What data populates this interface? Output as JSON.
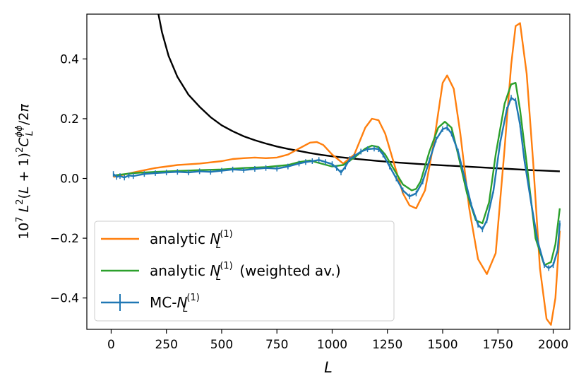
{
  "chart_data": {
    "type": "line",
    "title": "",
    "xlabel": "L",
    "ylabel": "10^7 L^2(L+1)^2 C_L^{φφ}/2π",
    "xlim": [
      -110,
      2075
    ],
    "ylim": [
      -0.505,
      0.55
    ],
    "x_ticks": [
      0,
      250,
      500,
      750,
      1000,
      1250,
      1500,
      1750,
      2000
    ],
    "x_tick_labels": [
      "0",
      "250",
      "500",
      "750",
      "1000",
      "1250",
      "1500",
      "1750",
      "2000"
    ],
    "y_ticks": [
      -0.4,
      -0.2,
      0.0,
      0.2,
      0.4
    ],
    "y_tick_labels": [
      "−0.4",
      "−0.2",
      "0.0",
      "0.2",
      "0.4"
    ],
    "legend": {
      "position": "lower-left",
      "entries": [
        {
          "key": "analytic",
          "prefix": "analytic ",
          "symbol": "N",
          "sub": "L",
          "sup": "(1)",
          "suffix": "",
          "color": "#ff7f0e"
        },
        {
          "key": "weighted",
          "prefix": "analytic ",
          "symbol": "N",
          "sub": "L",
          "sup": "(1)",
          "suffix": " (weighted av.)",
          "color": "#2ca02c"
        },
        {
          "key": "mc",
          "prefix": "MC-",
          "symbol": "N",
          "sub": "L",
          "sup": "(1)",
          "suffix": "",
          "color": "#1f77b4"
        }
      ]
    },
    "series": [
      {
        "name": "C_L^phiphi",
        "color": "#000000",
        "in_legend": false,
        "x": [
          214,
          230,
          260,
          300,
          350,
          400,
          450,
          500,
          550,
          600,
          650,
          700,
          750,
          800,
          850,
          900,
          950,
          1000,
          1100,
          1200,
          1300,
          1400,
          1500,
          1600,
          1700,
          1800,
          1900,
          2030
        ],
        "y": [
          0.55,
          0.49,
          0.41,
          0.34,
          0.28,
          0.24,
          0.205,
          0.178,
          0.158,
          0.141,
          0.128,
          0.117,
          0.107,
          0.099,
          0.092,
          0.085,
          0.079,
          0.074,
          0.066,
          0.059,
          0.053,
          0.048,
          0.044,
          0.04,
          0.036,
          0.032,
          0.028,
          0.024
        ]
      },
      {
        "name": "analytic",
        "color": "#ff7f0e",
        "in_legend": true,
        "x": [
          10,
          100,
          200,
          300,
          400,
          500,
          550,
          600,
          650,
          700,
          750,
          800,
          850,
          900,
          930,
          960,
          1000,
          1050,
          1100,
          1150,
          1180,
          1210,
          1240,
          1280,
          1320,
          1350,
          1380,
          1420,
          1460,
          1500,
          1520,
          1550,
          1580,
          1620,
          1660,
          1700,
          1740,
          1780,
          1810,
          1830,
          1850,
          1880,
          1910,
          1940,
          1970,
          1990,
          2010,
          2030
        ],
        "y": [
          0.005,
          0.02,
          0.035,
          0.045,
          0.05,
          0.058,
          0.065,
          0.068,
          0.07,
          0.068,
          0.07,
          0.08,
          0.1,
          0.12,
          0.122,
          0.112,
          0.08,
          0.05,
          0.08,
          0.17,
          0.2,
          0.195,
          0.15,
          0.05,
          -0.05,
          -0.09,
          -0.1,
          -0.04,
          0.12,
          0.32,
          0.345,
          0.3,
          0.15,
          -0.1,
          -0.27,
          -0.32,
          -0.25,
          0.1,
          0.38,
          0.51,
          0.52,
          0.35,
          0.05,
          -0.3,
          -0.47,
          -0.49,
          -0.4,
          -0.175
        ]
      },
      {
        "name": "weighted",
        "color": "#2ca02c",
        "in_legend": true,
        "x": [
          10,
          100,
          200,
          300,
          400,
          500,
          600,
          700,
          800,
          850,
          900,
          950,
          1000,
          1050,
          1100,
          1150,
          1180,
          1210,
          1240,
          1280,
          1320,
          1360,
          1380,
          1400,
          1440,
          1480,
          1510,
          1540,
          1570,
          1610,
          1650,
          1680,
          1710,
          1740,
          1780,
          1810,
          1830,
          1850,
          1880,
          1920,
          1960,
          1990,
          2010,
          2030
        ],
        "y": [
          0.01,
          0.018,
          0.022,
          0.025,
          0.028,
          0.03,
          0.035,
          0.038,
          0.045,
          0.055,
          0.06,
          0.05,
          0.04,
          0.045,
          0.07,
          0.1,
          0.11,
          0.105,
          0.08,
          0.03,
          -0.02,
          -0.04,
          -0.035,
          -0.01,
          0.09,
          0.17,
          0.19,
          0.17,
          0.08,
          -0.05,
          -0.14,
          -0.15,
          -0.08,
          0.08,
          0.25,
          0.315,
          0.32,
          0.23,
          0.05,
          -0.2,
          -0.29,
          -0.28,
          -0.22,
          -0.1
        ]
      },
      {
        "name": "mc",
        "color": "#1f77b4",
        "in_legend": true,
        "errorbars": true,
        "x": [
          10,
          25,
          40,
          60,
          80,
          100,
          150,
          200,
          250,
          300,
          350,
          400,
          450,
          500,
          550,
          600,
          650,
          700,
          750,
          800,
          850,
          880,
          910,
          940,
          970,
          1000,
          1020,
          1040,
          1060,
          1080,
          1100,
          1130,
          1160,
          1190,
          1210,
          1230,
          1260,
          1290,
          1320,
          1350,
          1380,
          1410,
          1440,
          1470,
          1500,
          1520,
          1540,
          1570,
          1600,
          1630,
          1660,
          1680,
          1700,
          1730,
          1760,
          1790,
          1810,
          1830,
          1850,
          1870,
          1900,
          1930,
          1960,
          1980,
          2000,
          2020,
          2030
        ],
        "y": [
          0.015,
          0.005,
          0.008,
          0.003,
          0.01,
          0.008,
          0.015,
          0.018,
          0.02,
          0.022,
          0.02,
          0.024,
          0.022,
          0.026,
          0.03,
          0.028,
          0.032,
          0.035,
          0.033,
          0.04,
          0.05,
          0.055,
          0.058,
          0.062,
          0.055,
          0.048,
          0.035,
          0.02,
          0.04,
          0.065,
          0.075,
          0.09,
          0.098,
          0.1,
          0.098,
          0.08,
          0.04,
          0.0,
          -0.04,
          -0.06,
          -0.05,
          -0.01,
          0.06,
          0.13,
          0.165,
          0.17,
          0.15,
          0.09,
          0.0,
          -0.09,
          -0.155,
          -0.17,
          -0.14,
          -0.04,
          0.12,
          0.23,
          0.27,
          0.26,
          0.18,
          0.06,
          -0.08,
          -0.21,
          -0.29,
          -0.3,
          -0.29,
          -0.24,
          -0.15
        ]
      }
    ]
  }
}
